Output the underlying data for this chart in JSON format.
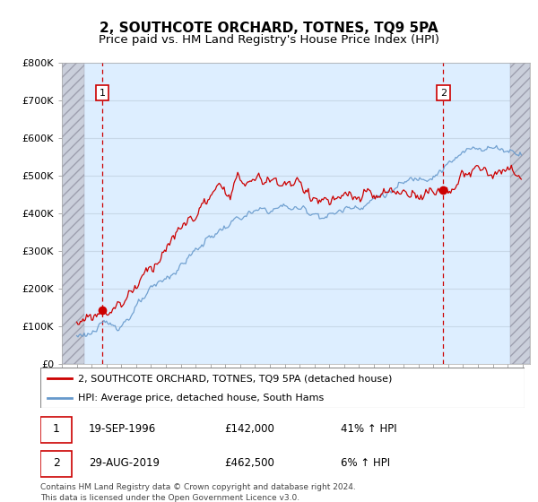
{
  "title": "2, SOUTHCOTE ORCHARD, TOTNES, TQ9 5PA",
  "subtitle": "Price paid vs. HM Land Registry's House Price Index (HPI)",
  "legend_line1": "2, SOUTHCOTE ORCHARD, TOTNES, TQ9 5PA (detached house)",
  "legend_line2": "HPI: Average price, detached house, South Hams",
  "sale1_date": "19-SEP-1996",
  "sale1_price": 142000,
  "sale1_label": "1",
  "sale1_hpi_text": "41% ↑ HPI",
  "sale2_date": "29-AUG-2019",
  "sale2_price": 462500,
  "sale2_label": "2",
  "sale2_hpi_text": "6% ↑ HPI",
  "footer": "Contains HM Land Registry data © Crown copyright and database right 2024.\nThis data is licensed under the Open Government Licence v3.0.",
  "ylim": [
    0,
    800000
  ],
  "yticks": [
    0,
    100000,
    200000,
    300000,
    400000,
    500000,
    600000,
    700000,
    800000
  ],
  "ytick_labels": [
    "£0",
    "£100K",
    "£200K",
    "£300K",
    "£400K",
    "£500K",
    "£600K",
    "£700K",
    "£800K"
  ],
  "xmin": 1994.0,
  "xmax": 2025.5,
  "sale1_year": 1996.72,
  "sale2_year": 2019.66,
  "hatch_left_end": 1995.5,
  "hatch_right_start": 2024.2,
  "red_color": "#cc0000",
  "blue_color": "#6699cc",
  "bg_color": "#ddeeff",
  "grid_color": "#c8d8e8",
  "hatch_bg": "#c8ccd8",
  "title_fontsize": 11,
  "subtitle_fontsize": 9.5
}
